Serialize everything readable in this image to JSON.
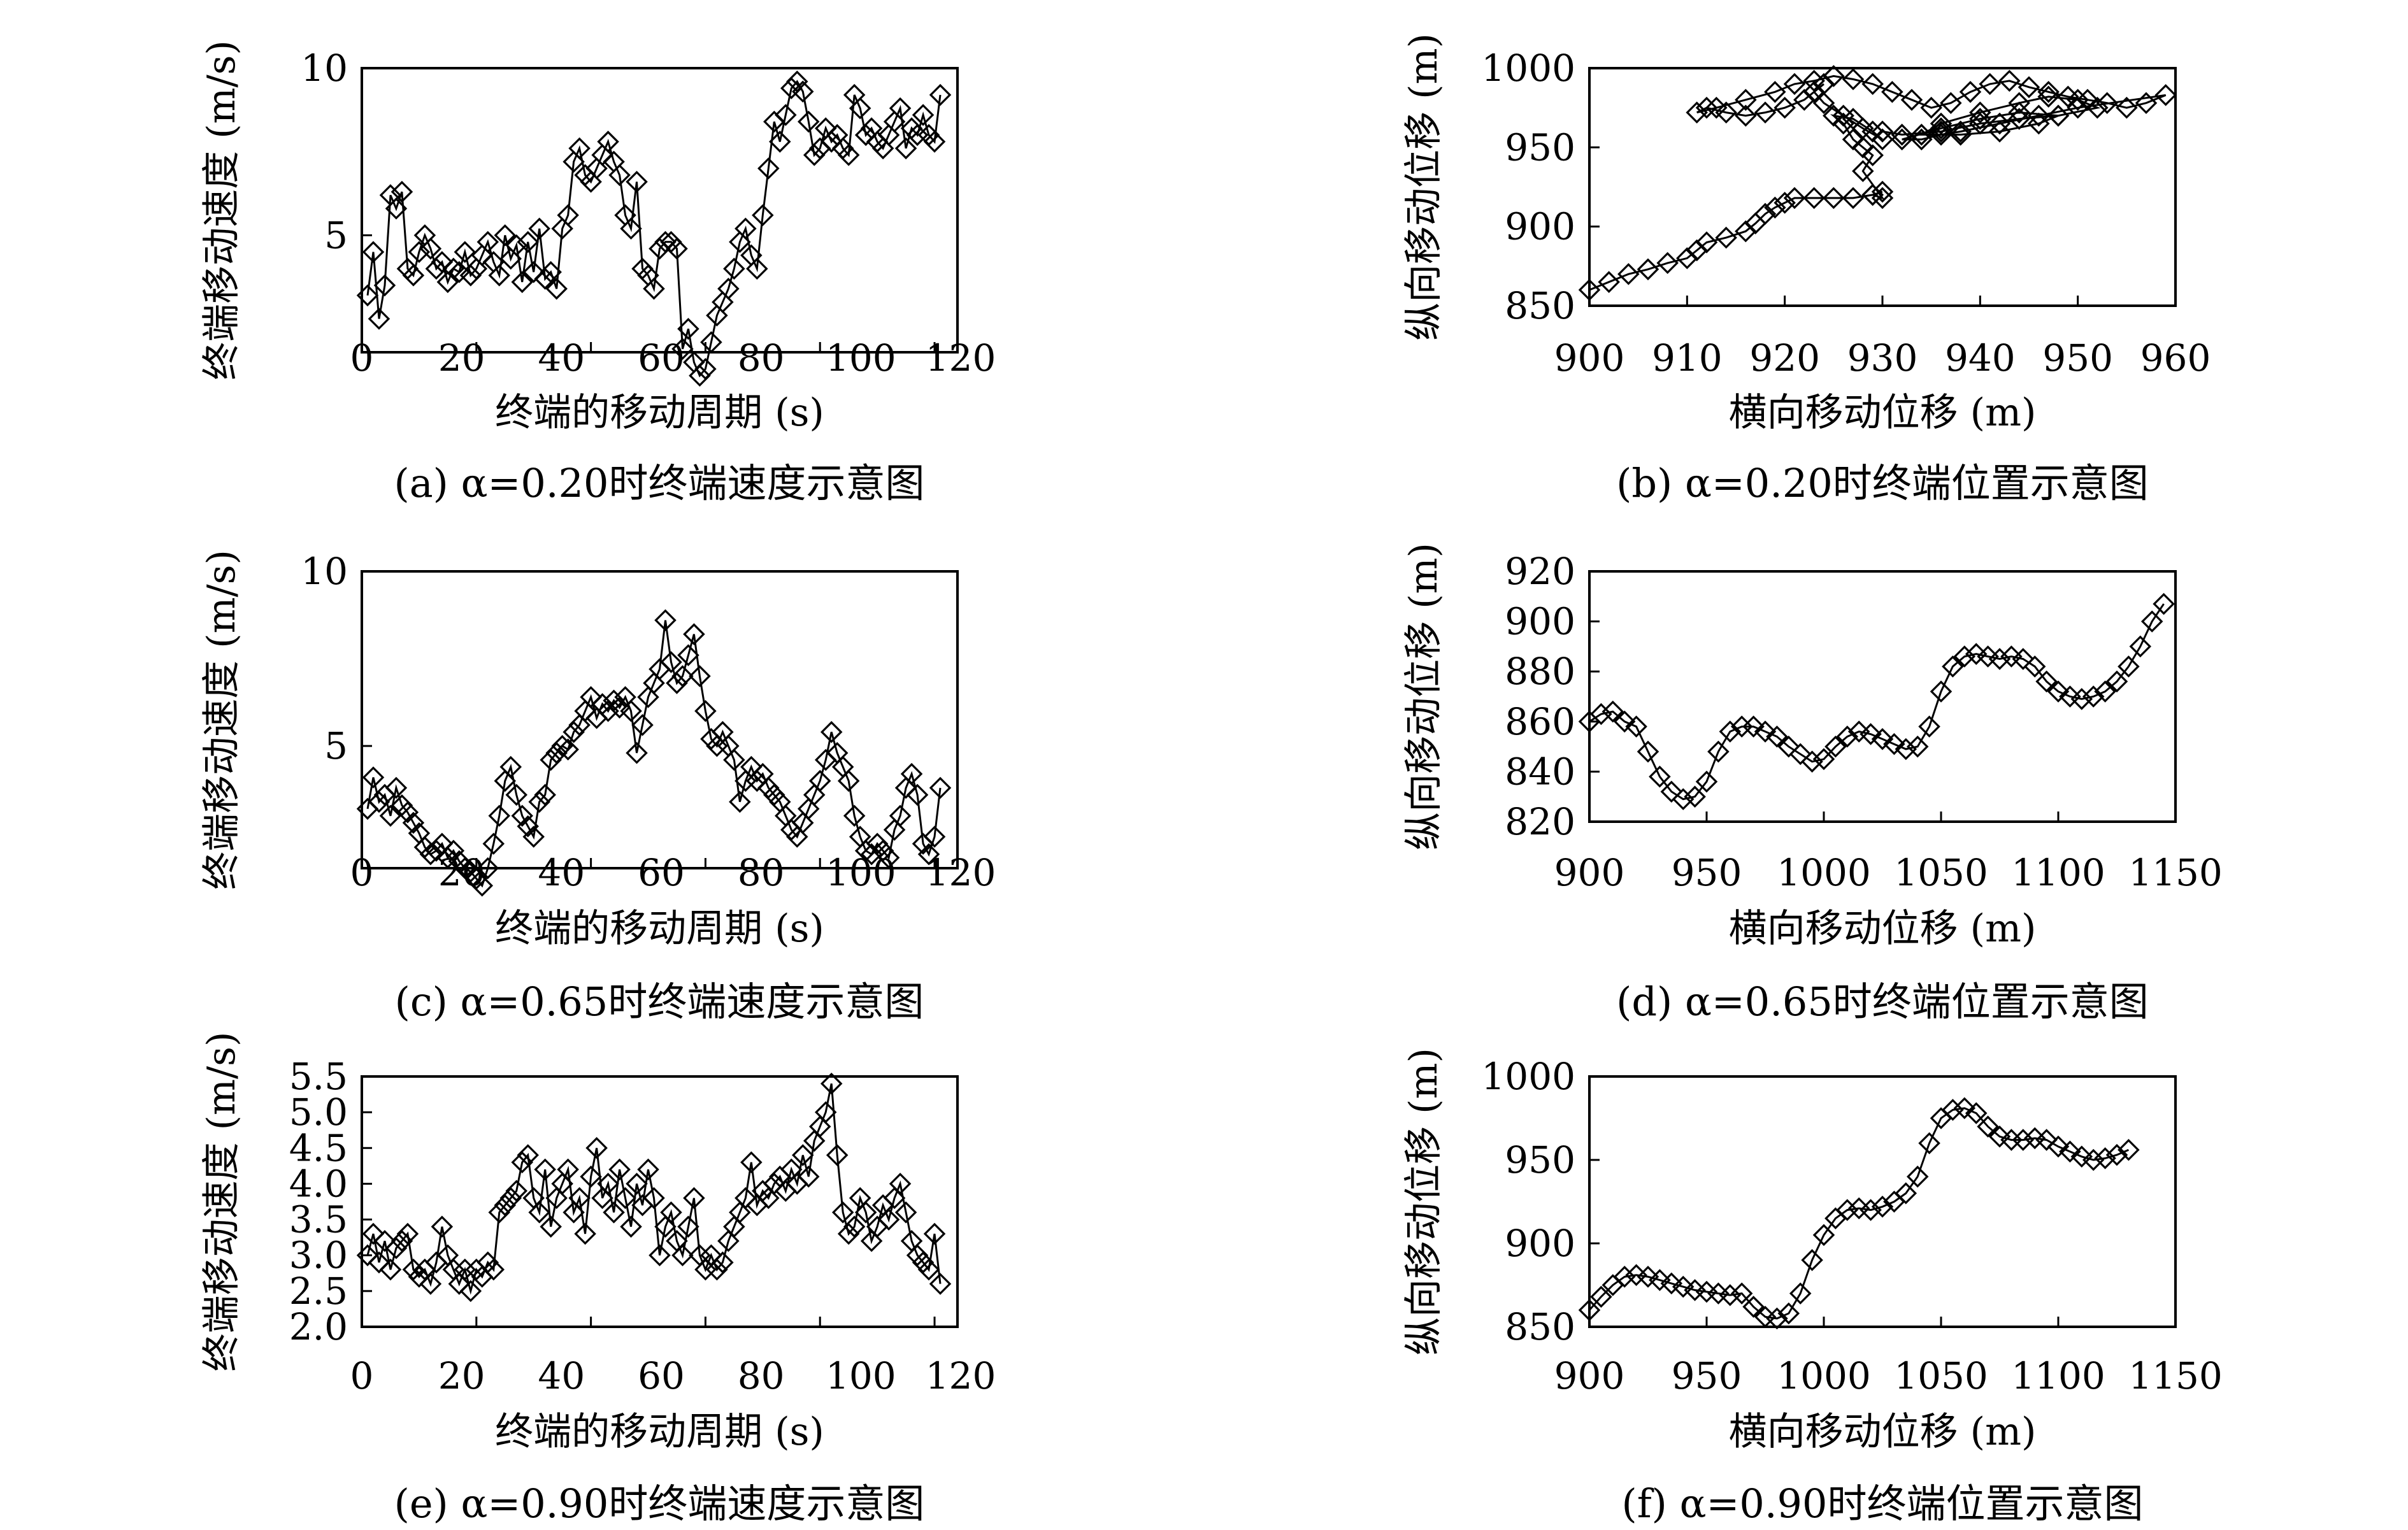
{
  "chart_data": [
    {
      "type": "line",
      "caption": "(a) α=0.20时终端速度示意图",
      "xlabel": "终端的移动周期 (s)",
      "ylabel": "终端移动速度 (m/s)",
      "xlim": [
        0,
        120
      ],
      "ylim": [
        0,
        10
      ],
      "xticks": [
        "0",
        "20",
        "40",
        "60",
        "80",
        "100",
        "120"
      ],
      "yticks": [
        "5",
        "10"
      ],
      "marker": "diamond",
      "x": [
        1,
        2,
        3,
        4,
        5,
        6,
        7,
        8,
        9,
        10,
        11,
        12,
        13,
        14,
        15,
        16,
        17,
        18,
        19,
        20,
        21,
        22,
        23,
        24,
        25,
        26,
        27,
        28,
        29,
        30,
        31,
        32,
        33,
        34,
        35,
        36,
        37,
        38,
        39,
        40,
        41,
        42,
        43,
        44,
        45,
        46,
        47,
        48,
        49,
        50,
        51,
        52,
        53,
        54,
        55,
        56,
        57,
        58,
        59,
        60,
        61,
        62,
        63,
        64,
        65,
        66,
        67,
        68,
        69,
        70,
        71,
        72,
        73,
        74,
        75,
        76,
        77,
        78,
        79,
        80,
        81,
        82,
        83,
        84,
        85,
        86,
        87,
        88,
        89,
        90,
        91,
        92,
        93,
        94,
        95,
        96,
        97,
        98,
        99,
        100,
        101
      ],
      "y": [
        3.2,
        4.5,
        2.5,
        3.5,
        6.2,
        5.8,
        6.3,
        4.0,
        3.8,
        4.5,
        5.0,
        4.6,
        4.0,
        4.2,
        3.6,
        4.0,
        3.9,
        4.5,
        3.8,
        4.0,
        4.4,
        4.8,
        4.2,
        3.8,
        5.0,
        4.3,
        4.7,
        3.6,
        4.8,
        3.9,
        5.2,
        3.7,
        3.9,
        3.4,
        5.2,
        5.6,
        7.2,
        7.6,
        6.8,
        6.6,
        7.0,
        7.4,
        7.8,
        7.2,
        6.8,
        5.6,
        5.2,
        6.6,
        4.0,
        3.8,
        3.4,
        4.6,
        4.8,
        4.8,
        4.6,
        1.6,
        2.2,
        1.2,
        0.8,
        1.0,
        1.8,
        2.6,
        3.0,
        3.4,
        4.0,
        4.8,
        5.2,
        4.4,
        4.0,
        5.6,
        7.0,
        8.4,
        7.8,
        8.6,
        9.4,
        9.6,
        9.3,
        8.4,
        7.4,
        7.6,
        8.2,
        7.8,
        8.0,
        7.6,
        7.4,
        9.2,
        8.8,
        8.0,
        8.2,
        7.8,
        7.6,
        8.0,
        8.4,
        8.8,
        7.6,
        8.2,
        8.0,
        8.6,
        8.0,
        7.8,
        9.2
      ]
    },
    {
      "type": "line",
      "caption": "(b) α=0.20时终端位置示意图",
      "xlabel": "横向移动位移 (m)",
      "ylabel": "纵向移动位移 (m)",
      "xlim": [
        900,
        960
      ],
      "ylim": [
        850,
        1000
      ],
      "xticks": [
        "900",
        "910",
        "920",
        "930",
        "940",
        "950",
        "960"
      ],
      "yticks": [
        "850",
        "900",
        "950",
        "1000"
      ],
      "marker": "diamond",
      "x": [
        900,
        902,
        904,
        906,
        908,
        910,
        911,
        912,
        914,
        916,
        917,
        918,
        919,
        920,
        921,
        923,
        925,
        927,
        929,
        930,
        929,
        930,
        928,
        929,
        928,
        927,
        926,
        925,
        927,
        929,
        930,
        928,
        926,
        924,
        923,
        924,
        922,
        920,
        918,
        916,
        914,
        912,
        911,
        913,
        916,
        919,
        921,
        923,
        925,
        927,
        929,
        931,
        933,
        935,
        937,
        939,
        941,
        943,
        945,
        947,
        949,
        951,
        953,
        955,
        957,
        959,
        950,
        946,
        942,
        938,
        936,
        934,
        932,
        936,
        940,
        944,
        948,
        946,
        942,
        938,
        934,
        936,
        940,
        944,
        947,
        950,
        952,
        948,
        944,
        940,
        936,
        932,
        930
      ],
      "y": [
        860,
        865,
        870,
        873,
        877,
        880,
        885,
        890,
        893,
        897,
        902,
        908,
        912,
        915,
        918,
        918,
        918,
        918,
        920,
        922,
        920,
        918,
        935,
        945,
        950,
        955,
        965,
        970,
        968,
        960,
        955,
        962,
        970,
        978,
        985,
        990,
        980,
        975,
        972,
        970,
        972,
        975,
        972,
        975,
        980,
        985,
        990,
        992,
        995,
        993,
        990,
        985,
        980,
        975,
        978,
        985,
        990,
        992,
        988,
        985,
        982,
        980,
        978,
        975,
        978,
        983,
        975,
        970,
        965,
        960,
        958,
        955,
        955,
        962,
        968,
        972,
        970,
        965,
        960,
        958,
        958,
        965,
        972,
        978,
        982,
        980,
        975,
        970,
        968,
        965,
        960,
        958,
        960
      ]
    },
    {
      "type": "line",
      "caption": "(c) α=0.65时终端速度示意图",
      "xlabel": "终端的移动周期 (s)",
      "ylabel": "终端移动速度 (m/s)",
      "xlim": [
        0,
        120
      ],
      "ylim": [
        0,
        10
      ],
      "xticks": [
        "0",
        "20",
        "40",
        "60",
        "80",
        "100",
        "120"
      ],
      "yticks": [
        "5",
        "10"
      ],
      "marker": "diamond",
      "x": [
        1,
        2,
        3,
        4,
        5,
        6,
        7,
        8,
        9,
        10,
        11,
        12,
        13,
        14,
        15,
        16,
        17,
        18,
        19,
        20,
        21,
        22,
        23,
        24,
        25,
        26,
        27,
        28,
        29,
        30,
        31,
        32,
        33,
        34,
        35,
        36,
        37,
        38,
        39,
        40,
        41,
        42,
        43,
        44,
        45,
        46,
        47,
        48,
        49,
        50,
        51,
        52,
        53,
        54,
        55,
        56,
        57,
        58,
        59,
        60,
        61,
        62,
        63,
        64,
        65,
        66,
        67,
        68,
        69,
        70,
        71,
        72,
        73,
        74,
        75,
        76,
        77,
        78,
        79,
        80,
        81,
        82,
        83,
        84,
        85,
        86,
        87,
        88,
        89,
        90,
        91,
        92,
        93,
        94,
        95,
        96,
        97,
        98,
        99,
        100,
        101
      ],
      "y": [
        3.2,
        4.1,
        3.4,
        3.6,
        3.0,
        3.8,
        3.3,
        3.1,
        2.8,
        2.5,
        2.1,
        1.9,
        2.0,
        2.2,
        1.8,
        2.0,
        1.7,
        1.5,
        1.4,
        1.2,
        1.0,
        1.5,
        2.2,
        3.0,
        4.0,
        4.4,
        3.6,
        3.0,
        2.7,
        2.4,
        3.4,
        3.6,
        4.6,
        4.8,
        5.0,
        4.9,
        5.4,
        5.6,
        6.0,
        6.4,
        5.8,
        6.2,
        6.0,
        6.3,
        6.1,
        6.4,
        6.0,
        4.8,
        5.6,
        6.4,
        6.8,
        7.2,
        8.6,
        7.4,
        6.8,
        7.0,
        7.6,
        8.2,
        7.0,
        6.0,
        5.2,
        5.0,
        5.4,
        5.0,
        4.6,
        3.4,
        4.0,
        4.4,
        4.0,
        4.2,
        3.8,
        3.6,
        3.4,
        3.0,
        2.6,
        2.4,
        2.8,
        3.2,
        3.6,
        4.0,
        4.6,
        5.4,
        4.8,
        4.4,
        4.0,
        3.0,
        2.4,
        2.0,
        1.9,
        2.2,
        2.0,
        1.8,
        2.6,
        3.0,
        3.8,
        4.2,
        3.6,
        2.2,
        1.9,
        2.4,
        3.8
      ]
    },
    {
      "type": "line",
      "caption": "(d) α=0.65时终端位置示意图",
      "xlabel": "横向移动位移 (m)",
      "ylabel": "纵向移动位移 (m)",
      "xlim": [
        900,
        1150
      ],
      "ylim": [
        820,
        920
      ],
      "xticks": [
        "900",
        "950",
        "1000",
        "1050",
        "1100",
        "1150"
      ],
      "yticks": [
        "820",
        "840",
        "860",
        "880",
        "900",
        "920"
      ],
      "marker": "diamond",
      "x": [
        900,
        905,
        910,
        915,
        920,
        925,
        930,
        935,
        940,
        945,
        950,
        955,
        960,
        965,
        970,
        975,
        980,
        985,
        990,
        995,
        1000,
        1005,
        1010,
        1015,
        1020,
        1025,
        1030,
        1035,
        1040,
        1045,
        1050,
        1055,
        1060,
        1065,
        1070,
        1075,
        1080,
        1085,
        1090,
        1095,
        1100,
        1105,
        1110,
        1115,
        1120,
        1125,
        1130,
        1135,
        1140,
        1145
      ],
      "y": [
        860,
        863,
        864,
        860,
        858,
        848,
        838,
        832,
        829,
        830,
        836,
        848,
        856,
        858,
        858,
        856,
        854,
        850,
        847,
        844,
        845,
        850,
        854,
        856,
        855,
        853,
        851,
        849,
        850,
        858,
        872,
        882,
        886,
        887,
        886,
        885,
        886,
        885,
        882,
        876,
        872,
        870,
        869,
        870,
        872,
        876,
        882,
        890,
        900,
        907
      ]
    },
    {
      "type": "line",
      "caption": "(e) α=0.90时终端速度示意图",
      "xlabel": "终端的移动周期 (s)",
      "ylabel": "终端移动速度 (m/s)",
      "xlim": [
        0,
        120
      ],
      "ylim": [
        2.0,
        5.5
      ],
      "xticks": [
        "0",
        "20",
        "40",
        "60",
        "80",
        "100",
        "120"
      ],
      "yticks": [
        "2.0",
        "2.5",
        "3.0",
        "3.5",
        "4.0",
        "4.5",
        "5.0",
        "5.5"
      ],
      "marker": "diamond",
      "x": [
        1,
        2,
        3,
        4,
        5,
        6,
        7,
        8,
        9,
        10,
        11,
        12,
        13,
        14,
        15,
        16,
        17,
        18,
        19,
        20,
        21,
        22,
        23,
        24,
        25,
        26,
        27,
        28,
        29,
        30,
        31,
        32,
        33,
        34,
        35,
        36,
        37,
        38,
        39,
        40,
        41,
        42,
        43,
        44,
        45,
        46,
        47,
        48,
        49,
        50,
        51,
        52,
        53,
        54,
        55,
        56,
        57,
        58,
        59,
        60,
        61,
        62,
        63,
        64,
        65,
        66,
        67,
        68,
        69,
        70,
        71,
        72,
        73,
        74,
        75,
        76,
        77,
        78,
        79,
        80,
        81,
        82,
        83,
        84,
        85,
        86,
        87,
        88,
        89,
        90,
        91,
        92,
        93,
        94,
        95,
        96,
        97,
        98,
        99,
        100,
        101
      ],
      "y": [
        3.0,
        3.3,
        2.9,
        3.2,
        2.8,
        3.1,
        3.2,
        3.3,
        2.8,
        2.7,
        2.8,
        2.6,
        2.9,
        3.4,
        3.0,
        2.8,
        2.6,
        2.8,
        2.5,
        2.8,
        2.7,
        2.9,
        2.8,
        3.6,
        3.7,
        3.8,
        3.9,
        4.3,
        4.4,
        3.8,
        3.6,
        4.2,
        3.4,
        3.8,
        4.0,
        4.2,
        3.6,
        3.8,
        3.3,
        4.1,
        4.5,
        3.8,
        4.0,
        3.6,
        4.2,
        3.8,
        3.4,
        4.0,
        3.7,
        4.2,
        3.8,
        3.0,
        3.4,
        3.6,
        3.2,
        3.0,
        3.4,
        3.8,
        3.0,
        2.8,
        3.0,
        2.8,
        2.9,
        3.2,
        3.4,
        3.6,
        3.8,
        4.3,
        3.7,
        3.9,
        3.8,
        4.0,
        4.1,
        3.9,
        4.2,
        4.0,
        4.4,
        4.1,
        4.6,
        4.8,
        5.0,
        5.4,
        4.4,
        3.6,
        3.3,
        3.4,
        3.8,
        3.6,
        3.2,
        3.4,
        3.7,
        3.5,
        3.8,
        4.0,
        3.6,
        3.2,
        3.0,
        2.9,
        2.8,
        3.3,
        2.6
      ]
    },
    {
      "type": "line",
      "caption": "(f) α=0.90时终端位置示意图",
      "xlabel": "横向移动位移 (m)",
      "ylabel": "纵向移动位移 (m)",
      "xlim": [
        900,
        1150
      ],
      "ylim": [
        850,
        1000
      ],
      "xticks": [
        "900",
        "950",
        "1000",
        "1050",
        "1100",
        "1150"
      ],
      "yticks": [
        "850",
        "900",
        "950",
        "1000"
      ],
      "marker": "diamond",
      "x": [
        900,
        905,
        910,
        915,
        920,
        925,
        930,
        935,
        940,
        945,
        950,
        955,
        960,
        965,
        970,
        975,
        980,
        985,
        990,
        995,
        1000,
        1005,
        1010,
        1015,
        1020,
        1025,
        1030,
        1035,
        1040,
        1045,
        1050,
        1055,
        1060,
        1065,
        1070,
        1075,
        1080,
        1085,
        1090,
        1095,
        1100,
        1105,
        1110,
        1115,
        1120,
        1125,
        1130
      ],
      "y": [
        860,
        868,
        875,
        880,
        881,
        880,
        878,
        876,
        874,
        872,
        871,
        870,
        869,
        870,
        862,
        856,
        855,
        858,
        870,
        890,
        905,
        915,
        920,
        921,
        920,
        922,
        925,
        930,
        940,
        960,
        975,
        980,
        981,
        978,
        970,
        964,
        962,
        962,
        963,
        962,
        958,
        955,
        952,
        950,
        951,
        953,
        956
      ]
    }
  ]
}
